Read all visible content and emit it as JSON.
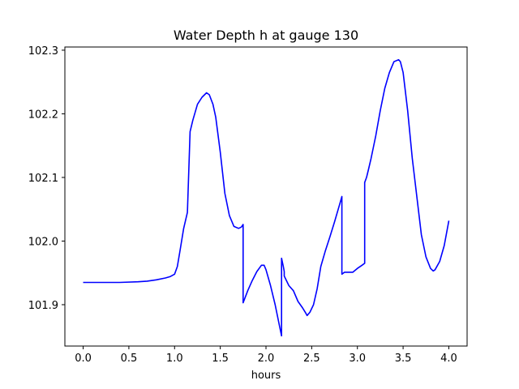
{
  "chart_data": {
    "type": "line",
    "title": "Water Depth h at gauge 130",
    "xlabel": "hours",
    "ylabel": "",
    "xlim": [
      -0.2,
      4.2
    ],
    "ylim": [
      101.835,
      102.305
    ],
    "xticks": [
      0.0,
      0.5,
      1.0,
      1.5,
      2.0,
      2.5,
      3.0,
      3.5,
      4.0
    ],
    "xtick_labels": [
      "0.0",
      "0.5",
      "1.0",
      "1.5",
      "2.0",
      "2.5",
      "3.0",
      "3.5",
      "4.0"
    ],
    "yticks": [
      101.9,
      102.0,
      102.1,
      102.2,
      102.3
    ],
    "ytick_labels": [
      "101.9",
      "102.0",
      "102.1",
      "102.2",
      "102.3"
    ],
    "grid": false,
    "series": [
      {
        "color": "#0000ff",
        "x": [
          0.0,
          0.2,
          0.4,
          0.6,
          0.7,
          0.8,
          0.9,
          0.95,
          1.0,
          1.03,
          1.06,
          1.1,
          1.14,
          1.17,
          1.17,
          1.2,
          1.25,
          1.3,
          1.35,
          1.38,
          1.42,
          1.45,
          1.5,
          1.55,
          1.6,
          1.65,
          1.7,
          1.73,
          1.75,
          1.75,
          1.8,
          1.85,
          1.9,
          1.95,
          1.98,
          2.0,
          2.05,
          2.1,
          2.15,
          2.17,
          2.17,
          2.19,
          2.2,
          2.2,
          2.25,
          2.3,
          2.35,
          2.4,
          2.43,
          2.45,
          2.48,
          2.52,
          2.56,
          2.6,
          2.65,
          2.7,
          2.75,
          2.8,
          2.83,
          2.83,
          2.86,
          2.9,
          2.95,
          3.0,
          3.05,
          3.08,
          3.08,
          3.1,
          3.12,
          3.15,
          3.2,
          3.25,
          3.3,
          3.35,
          3.4,
          3.45,
          3.47,
          3.5,
          3.55,
          3.6,
          3.65,
          3.7,
          3.75,
          3.8,
          3.83,
          3.85,
          3.9,
          3.95,
          4.0
        ],
        "y": [
          101.935,
          101.935,
          101.935,
          101.936,
          101.937,
          101.939,
          101.942,
          101.944,
          101.948,
          101.96,
          101.985,
          102.02,
          102.045,
          102.172,
          102.172,
          102.19,
          102.215,
          102.226,
          102.233,
          102.23,
          102.215,
          102.195,
          102.14,
          102.075,
          102.04,
          102.023,
          102.02,
          102.022,
          102.026,
          101.903,
          101.922,
          101.938,
          101.952,
          101.962,
          101.962,
          101.955,
          101.93,
          101.9,
          101.865,
          101.851,
          101.973,
          101.96,
          101.952,
          101.945,
          101.93,
          101.922,
          101.905,
          101.895,
          101.888,
          101.883,
          101.888,
          101.9,
          101.925,
          101.96,
          101.985,
          102.007,
          102.03,
          102.055,
          102.07,
          101.948,
          101.951,
          101.951,
          101.951,
          101.957,
          101.962,
          101.965,
          102.092,
          102.1,
          102.112,
          102.13,
          102.165,
          102.205,
          102.24,
          102.265,
          102.282,
          102.285,
          102.282,
          102.265,
          102.205,
          102.13,
          102.07,
          102.01,
          101.975,
          101.957,
          101.953,
          101.955,
          101.968,
          101.993,
          102.032
        ]
      }
    ]
  }
}
